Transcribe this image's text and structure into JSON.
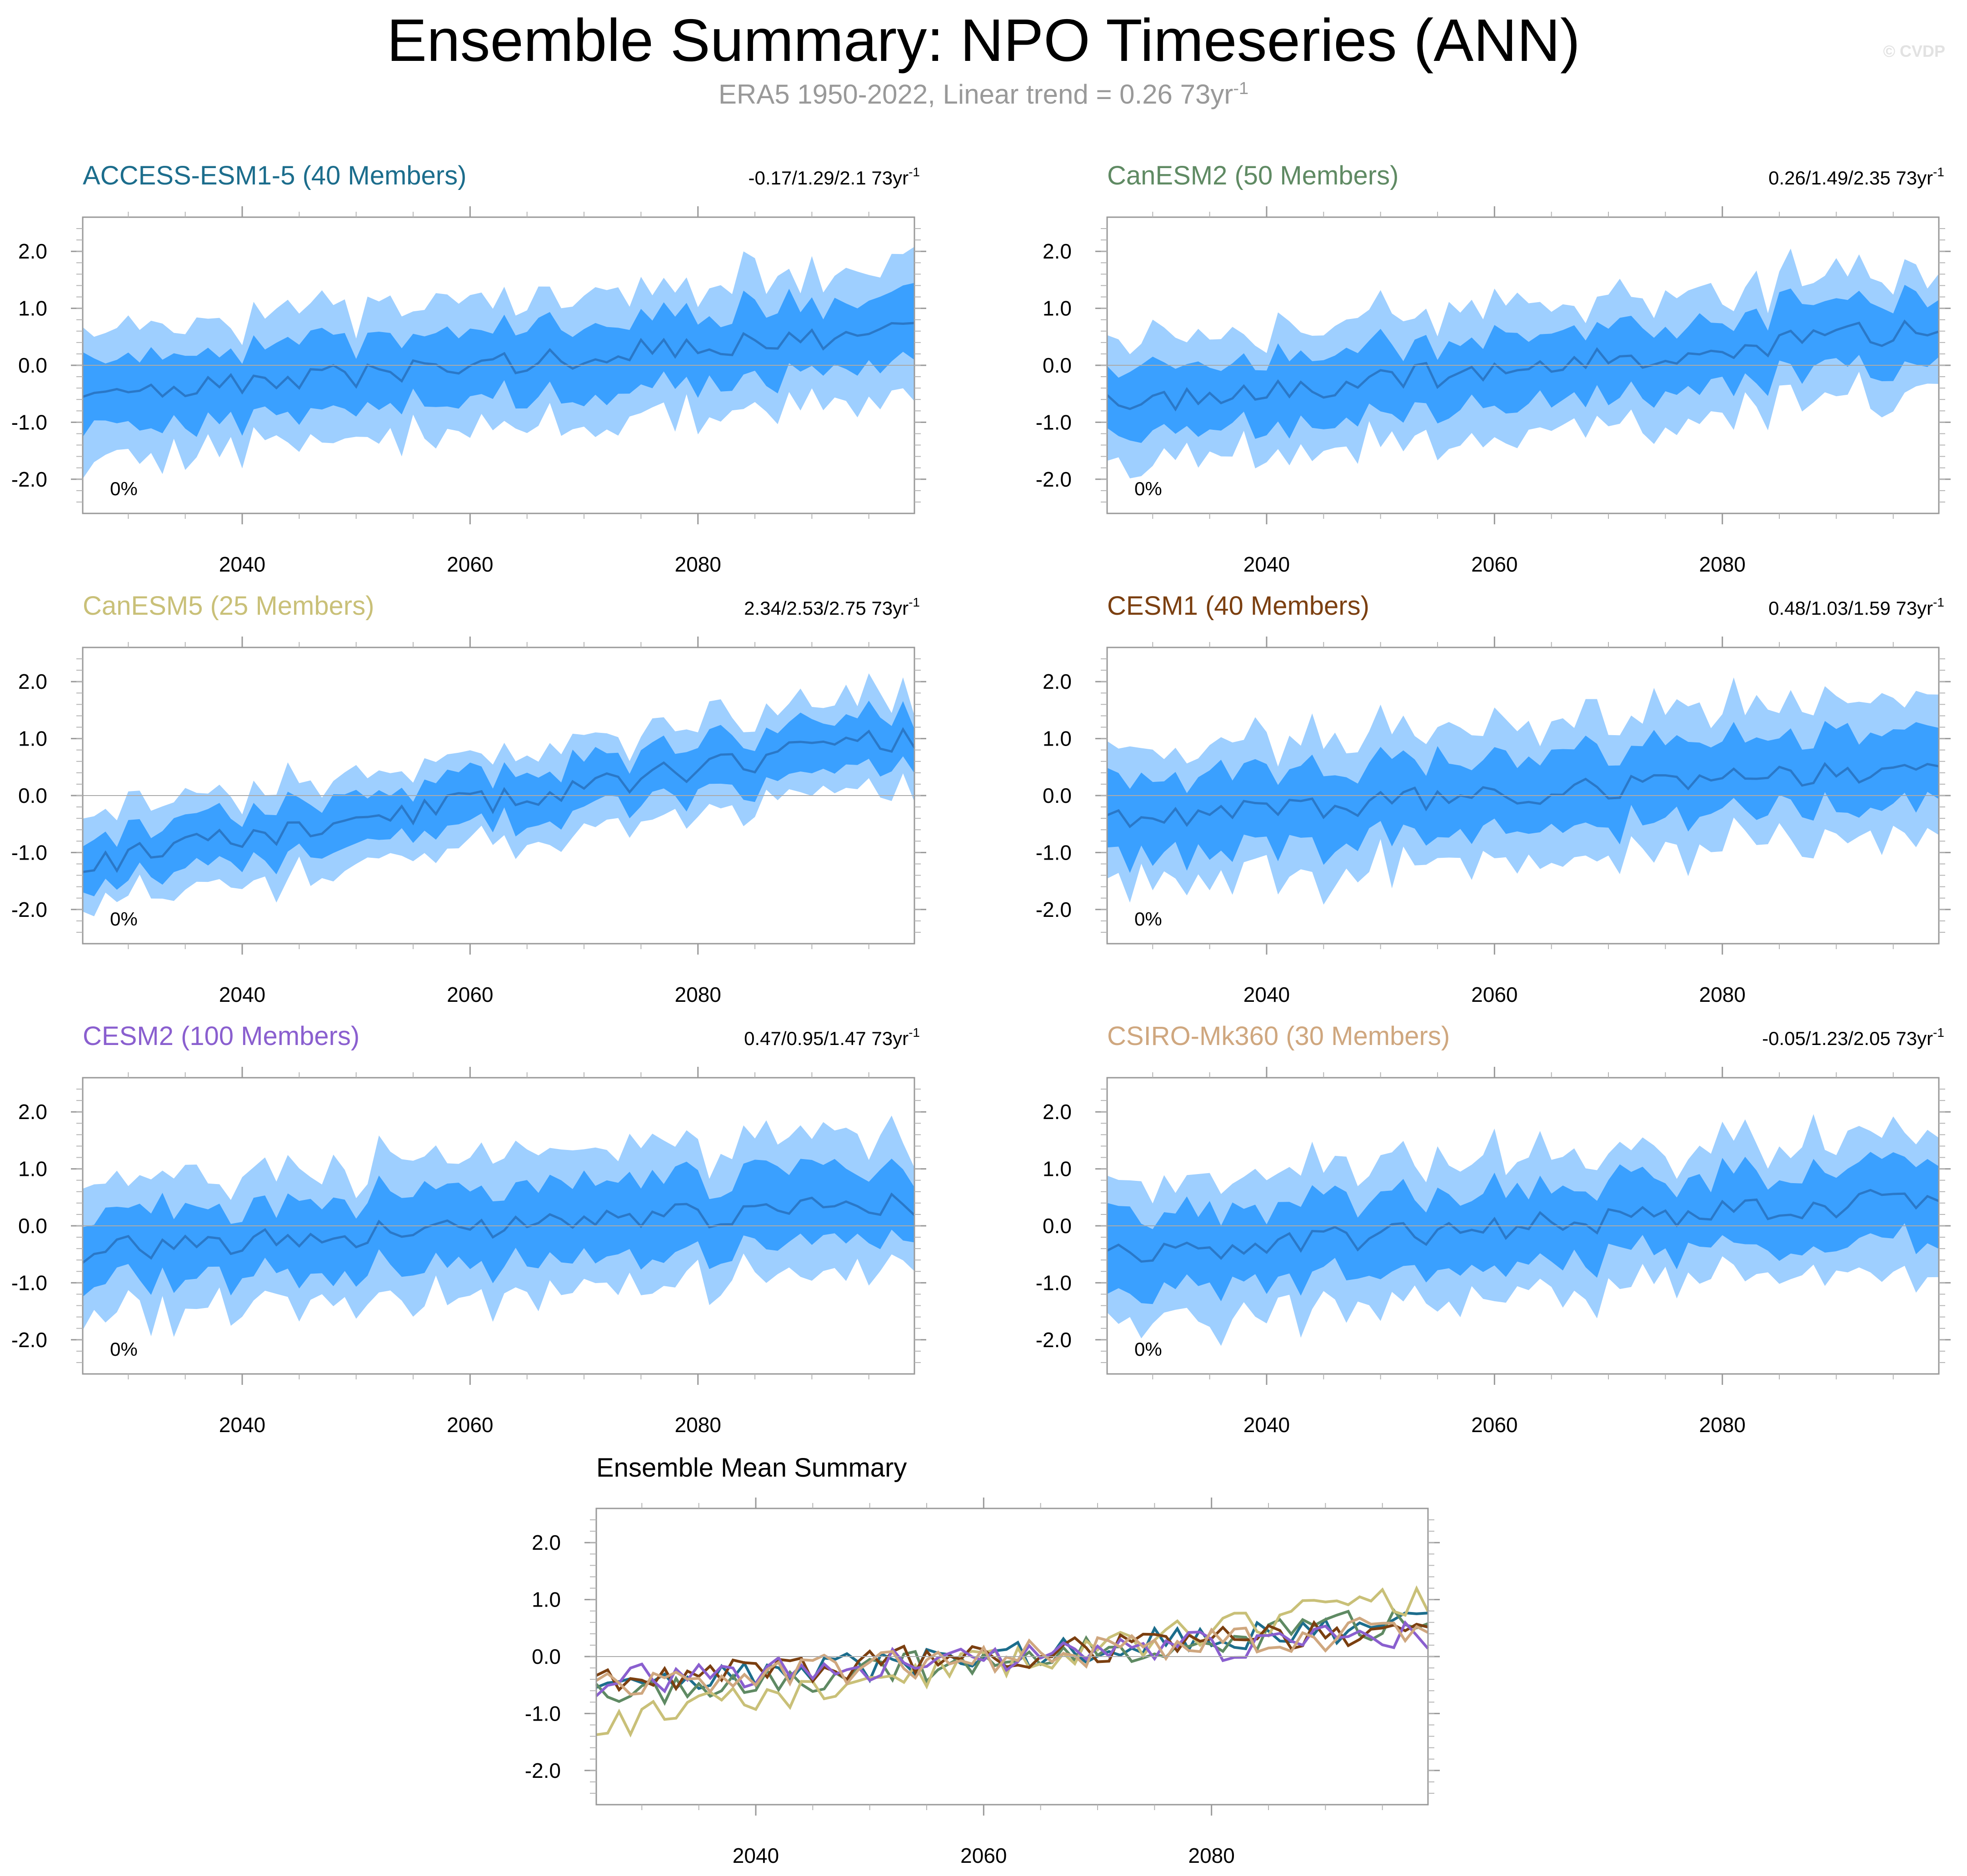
{
  "header": {
    "title": "Ensemble Summary: NPO Timeseries (ANN)",
    "subtitle": "ERA5 1950-2022, Linear trend = 0.26 73yr",
    "subtitle_sup": "-1",
    "watermark": "© CVDP"
  },
  "colors": {
    "outer_band": "#9ecfff",
    "inner_band": "#3aa0ff",
    "median_line": "#2a78c8",
    "zero_line": "#aaaaaa",
    "frame": "#999999"
  },
  "chart_data": [
    {
      "type": "area",
      "title": "ACCESS-ESM1-5 (40 Members)",
      "title_color": "#1c6d8c",
      "trend": "-0.17/1.29/2.1 73yr",
      "trend_sup": "-1",
      "pct_label": "0%",
      "x_range": [
        2026,
        2099
      ],
      "ylim": [
        -2.6,
        2.6
      ],
      "xticks": [
        "2040",
        "2060",
        "2080"
      ],
      "yticks": [
        "2.0",
        "1.0",
        "0.0",
        "-1.0",
        "-2.0"
      ],
      "start": -0.6,
      "end": 0.65,
      "spread": 1.0,
      "seed": 3
    },
    {
      "type": "area",
      "title": "CanESM2 (50 Members)",
      "title_color": "#5f8a63",
      "trend": "0.26/1.49/2.35 73yr",
      "trend_sup": "-1",
      "pct_label": "0%",
      "x_range": [
        2026,
        2099
      ],
      "ylim": [
        -2.6,
        2.6
      ],
      "xticks": [
        "2040",
        "2060",
        "2080"
      ],
      "yticks": [
        "2.0",
        "1.0",
        "0.0",
        "-1.0",
        "-2.0"
      ],
      "start": -0.7,
      "end": 0.65,
      "spread": 0.95,
      "seed": 7
    },
    {
      "type": "area",
      "title": "CanESM5 (25 Members)",
      "title_color": "#c9c078",
      "trend": "2.34/2.53/2.75 73yr",
      "trend_sup": "-1",
      "pct_label": "0%",
      "x_range": [
        2026,
        2099
      ],
      "ylim": [
        -2.6,
        2.6
      ],
      "xticks": [
        "2040",
        "2060",
        "2080"
      ],
      "yticks": [
        "2.0",
        "1.0",
        "0.0",
        "-1.0",
        "-2.0"
      ],
      "start": -1.2,
      "end": 1.05,
      "spread": 0.7,
      "seed": 11
    },
    {
      "type": "area",
      "title": "CESM1 (40 Members)",
      "title_color": "#7b3f10",
      "trend": "0.48/1.03/1.59 73yr",
      "trend_sup": "-1",
      "pct_label": "0%",
      "x_range": [
        2026,
        2099
      ],
      "ylim": [
        -2.6,
        2.6
      ],
      "xticks": [
        "2040",
        "2060",
        "2080"
      ],
      "yticks": [
        "2.0",
        "1.0",
        "0.0",
        "-1.0",
        "-2.0"
      ],
      "start": -0.4,
      "end": 0.5,
      "spread": 1.05,
      "seed": 17
    },
    {
      "type": "area",
      "title": "CESM2 (100 Members)",
      "title_color": "#8a5fcf",
      "trend": "0.47/0.95/1.47 73yr",
      "trend_sup": "-1",
      "pct_label": "0%",
      "x_range": [
        2026,
        2099
      ],
      "ylim": [
        -2.6,
        2.6
      ],
      "xticks": [
        "2040",
        "2060",
        "2080"
      ],
      "yticks": [
        "2.0",
        "1.0",
        "0.0",
        "-1.0",
        "-2.0"
      ],
      "start": -0.45,
      "end": 0.4,
      "spread": 1.05,
      "seed": 23
    },
    {
      "type": "area",
      "title": "CSIRO-Mk360 (30 Members)",
      "title_color": "#cfa77f",
      "trend": "-0.05/1.23/2.05 73yr",
      "trend_sup": "-1",
      "pct_label": "0%",
      "x_range": [
        2026,
        2099
      ],
      "ylim": [
        -2.6,
        2.6
      ],
      "xticks": [
        "2040",
        "2060",
        "2080"
      ],
      "yticks": [
        "2.0",
        "1.0",
        "0.0",
        "-1.0",
        "-2.0"
      ],
      "start": -0.5,
      "end": 0.5,
      "spread": 1.05,
      "seed": 31
    },
    {
      "type": "line",
      "title": "Ensemble Mean Summary",
      "title_color": "#000000",
      "x_range": [
        2026,
        2099
      ],
      "ylim": [
        -2.6,
        2.6
      ],
      "xticks": [
        "2040",
        "2060",
        "2080"
      ],
      "yticks": [
        "2.0",
        "1.0",
        "0.0",
        "-1.0",
        "-2.0"
      ],
      "series": [
        {
          "name": "ACCESS-ESM1-5",
          "color": "#1c6d8c",
          "start": -0.6,
          "end": 0.65,
          "seed": 3
        },
        {
          "name": "CanESM2",
          "color": "#5f8a63",
          "start": -0.7,
          "end": 0.65,
          "seed": 7
        },
        {
          "name": "CanESM5",
          "color": "#c9c078",
          "start": -1.2,
          "end": 1.05,
          "seed": 11
        },
        {
          "name": "CESM1",
          "color": "#7b3f10",
          "start": -0.4,
          "end": 0.5,
          "seed": 17
        },
        {
          "name": "CESM2",
          "color": "#8a5fcf",
          "start": -0.45,
          "end": 0.4,
          "seed": 23
        },
        {
          "name": "CSIRO-Mk360",
          "color": "#cfa77f",
          "start": -0.5,
          "end": 0.5,
          "seed": 31
        }
      ]
    }
  ]
}
